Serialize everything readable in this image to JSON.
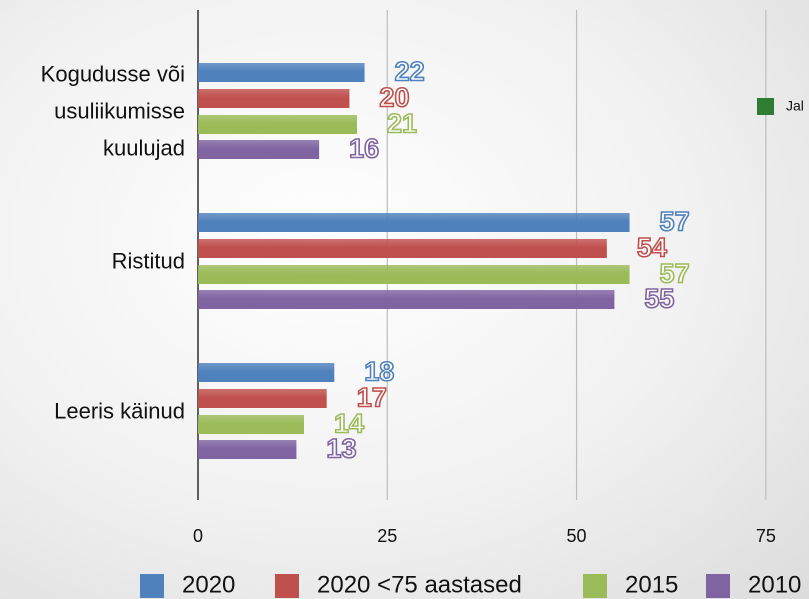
{
  "chart_data": {
    "type": "bar",
    "orientation": "horizontal",
    "categories": [
      "Kogudusse või\nusuliikumisse\nkuulujad",
      "Ristitud",
      "Leeris käinud"
    ],
    "series": [
      {
        "name": "2020",
        "color": "#4f81bd",
        "values": [
          22,
          57,
          18
        ]
      },
      {
        "name": "2020 <75 aastased",
        "color": "#c0504d",
        "values": [
          20,
          54,
          17
        ]
      },
      {
        "name": "2015",
        "color": "#9bbb59",
        "values": [
          21,
          57,
          14
        ]
      },
      {
        "name": "2010",
        "color": "#8064a2",
        "values": [
          16,
          55,
          13
        ]
      }
    ],
    "xlim": [
      0,
      80.7
    ],
    "xticks": [
      0,
      25,
      50,
      75
    ],
    "grid": true,
    "legend": "bottom",
    "annotation": {
      "text": "Jal",
      "color": "#2e7d32"
    }
  }
}
